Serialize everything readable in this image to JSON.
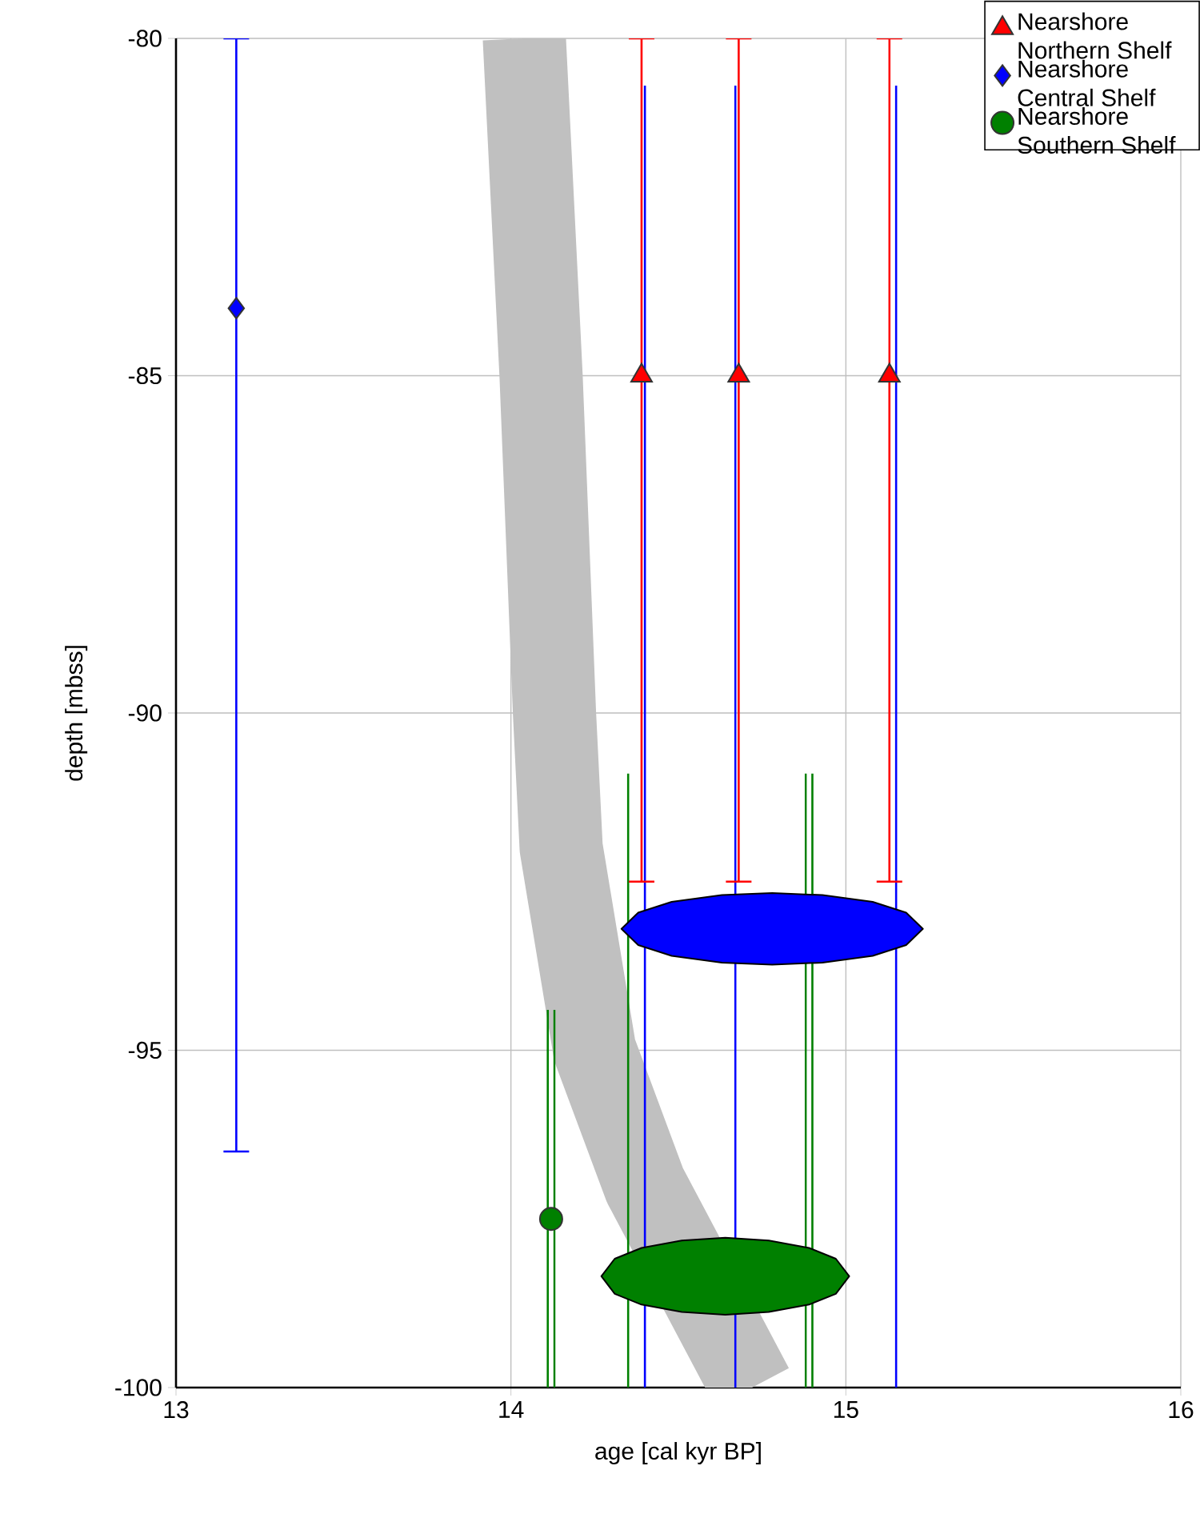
{
  "chart_data": {
    "type": "scatter",
    "xlabel": "age [cal kyr BP]",
    "ylabel": "depth [mbss]",
    "xlim": [
      13,
      16
    ],
    "ylim": [
      -100,
      -80
    ],
    "xticks": [
      13,
      14,
      15,
      16
    ],
    "yticks": [
      -80,
      -85,
      -90,
      -95,
      -100
    ],
    "grid": true,
    "legend": "top right",
    "series": [
      {
        "type": "line",
        "color": "#c0c0c0",
        "x": [
          14.04,
          14.09,
          14.13,
          14.15,
          14.25,
          14.4,
          14.72
        ],
        "values": [
          -80,
          -85,
          -90,
          -92,
          -95,
          -97,
          -100
        ]
      },
      {
        "type": "line",
        "color": "#0000ff",
        "x": [
          14.4,
          14.4
        ],
        "values": [
          -80.7,
          -100
        ]
      },
      {
        "type": "line",
        "color": "#0000ff",
        "x": [
          14.67,
          14.67
        ],
        "values": [
          -80.7,
          -100
        ]
      },
      {
        "type": "line",
        "color": "#0000ff",
        "x": [
          15.15,
          15.15
        ],
        "values": [
          -80.7,
          -100
        ]
      },
      {
        "type": "line",
        "color": "#008000",
        "x": [
          14.11,
          14.11
        ],
        "values": [
          -94.4,
          -100
        ]
      },
      {
        "type": "line",
        "color": "#008000",
        "x": [
          14.13,
          14.13
        ],
        "values": [
          -94.4,
          -100
        ]
      },
      {
        "type": "line",
        "color": "#008000",
        "x": [
          14.35,
          14.35
        ],
        "values": [
          -90.9,
          -100
        ]
      },
      {
        "type": "line",
        "color": "#008000",
        "x": [
          14.88,
          14.88
        ],
        "values": [
          -90.9,
          -100
        ]
      },
      {
        "type": "line",
        "color": "#008000",
        "x": [
          14.9,
          14.9
        ],
        "values": [
          -90.9,
          -100
        ]
      },
      {
        "name": "Nearshore Northern Shelf",
        "marker": "triangle",
        "color": "#ff0000",
        "x": [
          14.39,
          14.68,
          15.13
        ],
        "values": [
          -85,
          -85,
          -85
        ],
        "errors": [
          [
            -92.5,
            -80
          ],
          [
            -92.5,
            -80
          ],
          [
            -92.5,
            -80
          ]
        ]
      },
      {
        "name": "Nearshore Central Shelf",
        "marker": "diamond",
        "color": "#0000ff",
        "x": [
          13.18
        ],
        "values": [
          -84
        ],
        "errors": [
          [
            -96.5,
            -80
          ]
        ]
      },
      {
        "name": "Nearshore Southern Shelf",
        "marker": "circle",
        "color": "#008000",
        "x": [
          14.12
        ],
        "values": [
          -97.5
        ]
      },
      {
        "type": "area",
        "color": "#0000ff",
        "x": [
          14.33,
          14.38,
          14.48,
          14.63,
          14.78,
          14.93,
          15.08,
          15.18,
          15.23,
          15.18,
          15.08,
          14.93,
          14.78,
          14.63,
          14.48,
          14.38
        ],
        "values": [
          -93.2,
          -92.96,
          -92.8,
          -92.7,
          -92.67,
          -92.7,
          -92.8,
          -92.96,
          -93.2,
          -93.44,
          -93.6,
          -93.7,
          -93.73,
          -93.7,
          -93.6,
          -93.44
        ]
      },
      {
        "type": "area",
        "color": "#008000",
        "x": [
          14.27,
          14.31,
          14.39,
          14.51,
          14.64,
          14.77,
          14.89,
          14.97,
          15.01,
          14.97,
          14.89,
          14.77,
          14.64,
          14.51,
          14.39,
          14.31
        ],
        "values": [
          -98.35,
          -98.09,
          -97.93,
          -97.82,
          -97.78,
          -97.82,
          -97.93,
          -98.09,
          -98.35,
          -98.61,
          -98.77,
          -98.88,
          -98.92,
          -98.88,
          -98.77,
          -98.61
        ]
      }
    ]
  }
}
